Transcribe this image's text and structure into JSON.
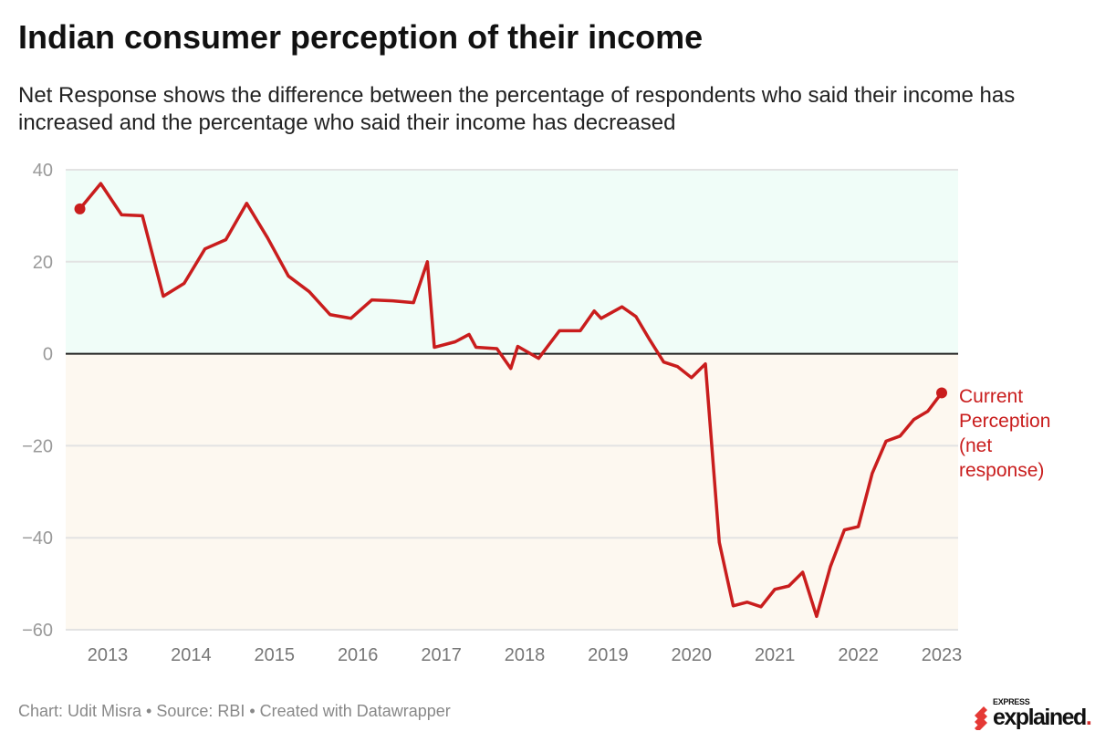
{
  "header": {
    "title": "Indian consumer perception of their income",
    "subtitle": "Net Response shows the difference between the percentage of respondents who said their income has increased and the percentage who said their income has decreased"
  },
  "footer": {
    "credit": "Chart: Udit Misra • Source: RBI • Created with Datawrapper"
  },
  "logo": {
    "small": "EXPRESS",
    "big": "explained",
    "dot": "."
  },
  "colors": {
    "line": "#c91d1d",
    "positive_zone": "#f0fdf8",
    "negative_zone": "#fdf8f0",
    "grid": "#e3e3e3",
    "zero_line": "#222222",
    "tick_text": "#999999"
  },
  "chart_data": {
    "type": "line",
    "title": "Indian consumer perception of their income",
    "xlabel": "",
    "ylabel": "",
    "ylim": [
      -60,
      40
    ],
    "yticks": [
      40,
      20,
      0,
      -20,
      -40,
      -60
    ],
    "ytick_labels": [
      "40",
      "20",
      "0",
      "−20",
      "−40",
      "−60"
    ],
    "xticks": [
      "2013",
      "2014",
      "2015",
      "2016",
      "2017",
      "2018",
      "2019",
      "2020",
      "2021",
      "2022",
      "2023"
    ],
    "grid": true,
    "shaded_regions": [
      {
        "from": 0,
        "to": 40,
        "color": "#f0fdf8"
      },
      {
        "from": -60,
        "to": 0,
        "color": "#fdf8f0"
      }
    ],
    "annotation": {
      "lines": [
        "Current",
        "Perception",
        "(net",
        "response)"
      ]
    },
    "series": [
      {
        "x": [
          "2012-09",
          "2012-12",
          "2013-03",
          "2013-06",
          "2013-09",
          "2013-12",
          "2014-03",
          "2014-06",
          "2014-09",
          "2014-12",
          "2015-03",
          "2015-06",
          "2015-09",
          "2015-12",
          "2016-03",
          "2016-06",
          "2016-09",
          "2016-11",
          "2016-12",
          "2017-03",
          "2017-05",
          "2017-06",
          "2017-09",
          "2017-11",
          "2017-12",
          "2018-03",
          "2018-06",
          "2018-09",
          "2018-11",
          "2018-12",
          "2019-03",
          "2019-05",
          "2019-07",
          "2019-09",
          "2019-11",
          "2020-01",
          "2020-03",
          "2020-05",
          "2020-07",
          "2020-09",
          "2020-11",
          "2021-01",
          "2021-03",
          "2021-05",
          "2021-07",
          "2021-09",
          "2021-11",
          "2022-01",
          "2022-03",
          "2022-05",
          "2022-07",
          "2022-09",
          "2022-11",
          "2023-01"
        ],
        "y": [
          31.5,
          37,
          30.2,
          30,
          12.5,
          15.3,
          22.8,
          24.8,
          32.7,
          25.2,
          16.9,
          13.5,
          8.5,
          7.7,
          11.7,
          11.5,
          11.1,
          20,
          1.4,
          2.6,
          4.2,
          1.4,
          1.1,
          -3.2,
          1.6,
          -1,
          5,
          5,
          9.3,
          7.7,
          10.2,
          8.1,
          3,
          -1.8,
          -2.8,
          -5.2,
          -2.2,
          -41,
          -54.8,
          -54,
          -55,
          -51.2,
          -50.5,
          -47.5,
          -57.1,
          -46.2,
          -38.3,
          -37.6,
          -26,
          -19,
          -17.9,
          -14.3,
          -12.5,
          -8.5
        ]
      }
    ]
  }
}
